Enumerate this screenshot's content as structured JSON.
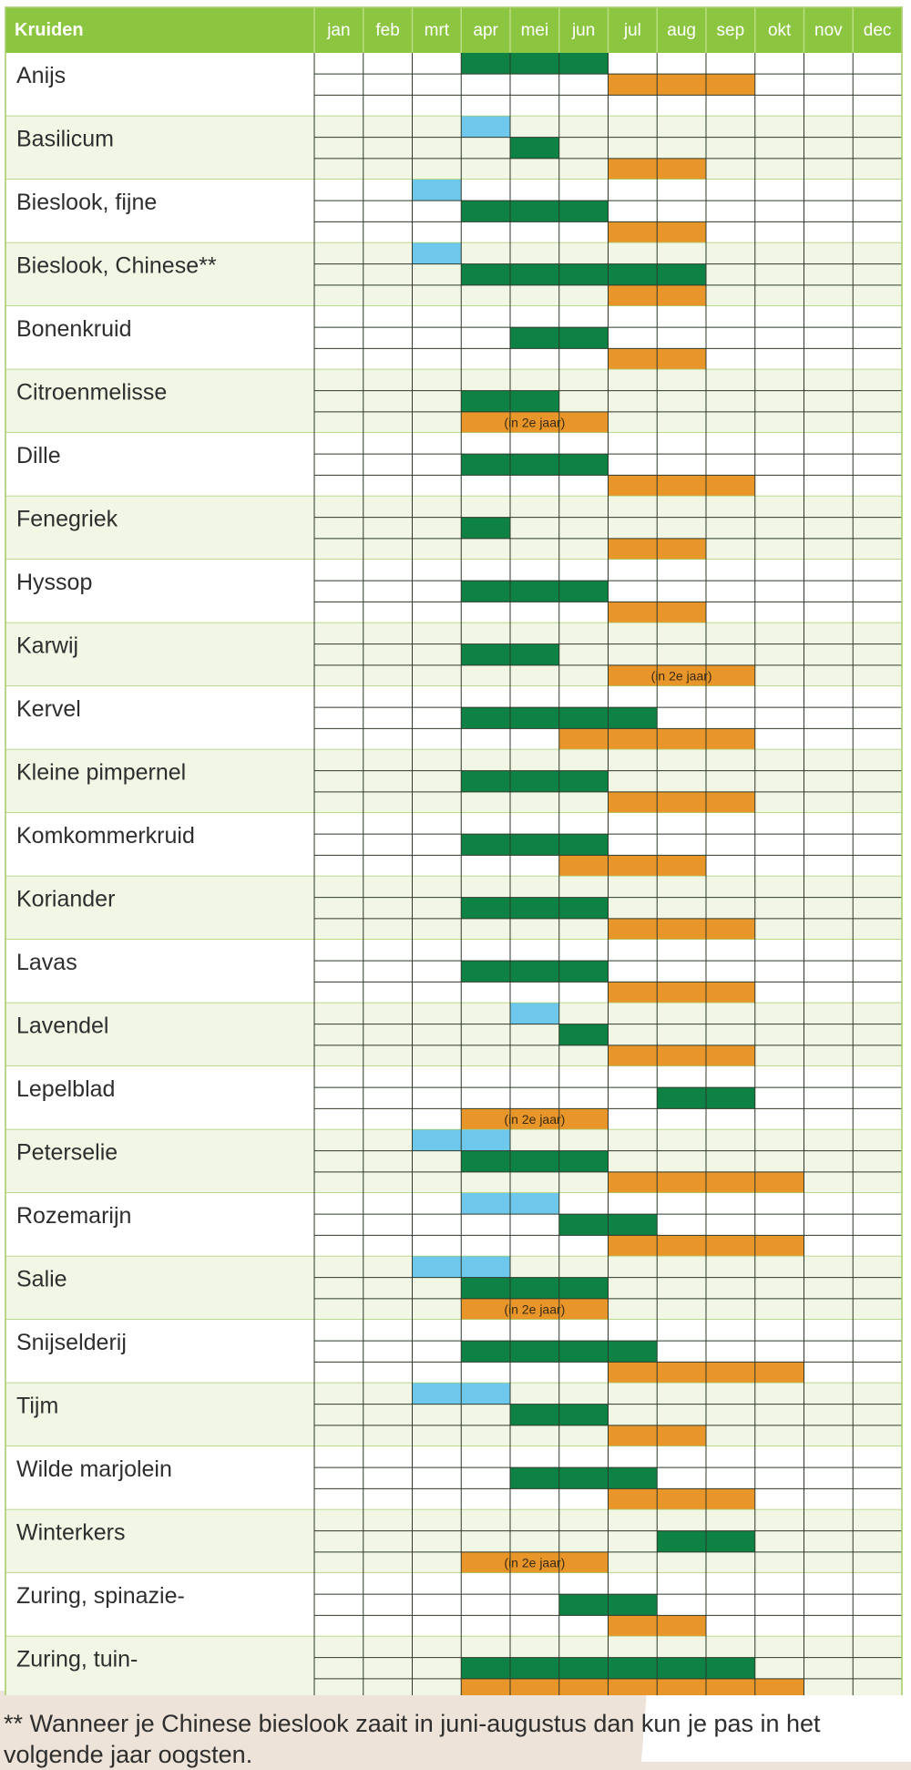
{
  "chart_data": {
    "type": "table",
    "header_label": "Kruiden",
    "months": [
      "jan",
      "feb",
      "mrt",
      "apr",
      "mei",
      "jun",
      "jul",
      "aug",
      "sep",
      "okt",
      "nov",
      "dec"
    ],
    "legend_colors": {
      "blue": "#6dc8ec",
      "green": "#0d8244",
      "orange": "#e8952a",
      "header": "#8cc540"
    },
    "rows": [
      {
        "name": "Anijs",
        "bars": [
          {
            "sub": 0,
            "color": "green",
            "start": 4,
            "end": 6
          },
          {
            "sub": 1,
            "color": "orange",
            "start": 7,
            "end": 9
          }
        ]
      },
      {
        "name": "Basilicum",
        "bars": [
          {
            "sub": 0,
            "color": "blue",
            "start": 4,
            "end": 4
          },
          {
            "sub": 1,
            "color": "green",
            "start": 5,
            "end": 5
          },
          {
            "sub": 2,
            "color": "orange",
            "start": 7,
            "end": 8
          }
        ]
      },
      {
        "name": "Bieslook, fijne",
        "bars": [
          {
            "sub": 0,
            "color": "blue",
            "start": 3,
            "end": 3
          },
          {
            "sub": 1,
            "color": "green",
            "start": 4,
            "end": 6
          },
          {
            "sub": 2,
            "color": "orange",
            "start": 7,
            "end": 8
          }
        ]
      },
      {
        "name": "Bieslook, Chinese**",
        "bars": [
          {
            "sub": 0,
            "color": "blue",
            "start": 3,
            "end": 3
          },
          {
            "sub": 1,
            "color": "green",
            "start": 4,
            "end": 8
          },
          {
            "sub": 2,
            "color": "orange",
            "start": 7,
            "end": 8
          }
        ]
      },
      {
        "name": "Bonenkruid",
        "bars": [
          {
            "sub": 1,
            "color": "green",
            "start": 5,
            "end": 6
          },
          {
            "sub": 2,
            "color": "orange",
            "start": 7,
            "end": 8
          }
        ]
      },
      {
        "name": "Citroenmelisse",
        "bars": [
          {
            "sub": 1,
            "color": "green",
            "start": 4,
            "end": 5
          },
          {
            "sub": 2,
            "color": "orange",
            "start": 4,
            "end": 6,
            "label": "(in 2e jaar)"
          }
        ]
      },
      {
        "name": "Dille",
        "bars": [
          {
            "sub": 1,
            "color": "green",
            "start": 4,
            "end": 6
          },
          {
            "sub": 2,
            "color": "orange",
            "start": 7,
            "end": 9
          }
        ]
      },
      {
        "name": "Fenegriek",
        "bars": [
          {
            "sub": 1,
            "color": "green",
            "start": 4,
            "end": 4
          },
          {
            "sub": 2,
            "color": "orange",
            "start": 7,
            "end": 8
          }
        ]
      },
      {
        "name": "Hyssop",
        "bars": [
          {
            "sub": 1,
            "color": "green",
            "start": 4,
            "end": 6
          },
          {
            "sub": 2,
            "color": "orange",
            "start": 7,
            "end": 8
          }
        ]
      },
      {
        "name": "Karwij",
        "bars": [
          {
            "sub": 1,
            "color": "green",
            "start": 4,
            "end": 5
          },
          {
            "sub": 2,
            "color": "orange",
            "start": 7,
            "end": 9,
            "label": "(in 2e jaar)"
          }
        ]
      },
      {
        "name": "Kervel",
        "bars": [
          {
            "sub": 1,
            "color": "green",
            "start": 4,
            "end": 7
          },
          {
            "sub": 2,
            "color": "orange",
            "start": 6,
            "end": 9
          }
        ]
      },
      {
        "name": "Kleine pimpernel",
        "bars": [
          {
            "sub": 1,
            "color": "green",
            "start": 4,
            "end": 6
          },
          {
            "sub": 2,
            "color": "orange",
            "start": 7,
            "end": 9
          }
        ]
      },
      {
        "name": "Komkommerkruid",
        "bars": [
          {
            "sub": 1,
            "color": "green",
            "start": 4,
            "end": 6
          },
          {
            "sub": 2,
            "color": "orange",
            "start": 6,
            "end": 8
          }
        ]
      },
      {
        "name": "Koriander",
        "bars": [
          {
            "sub": 1,
            "color": "green",
            "start": 4,
            "end": 6
          },
          {
            "sub": 2,
            "color": "orange",
            "start": 7,
            "end": 9
          }
        ]
      },
      {
        "name": "Lavas",
        "bars": [
          {
            "sub": 1,
            "color": "green",
            "start": 4,
            "end": 6
          },
          {
            "sub": 2,
            "color": "orange",
            "start": 7,
            "end": 9
          }
        ]
      },
      {
        "name": "Lavendel",
        "bars": [
          {
            "sub": 0,
            "color": "blue",
            "start": 5,
            "end": 5
          },
          {
            "sub": 1,
            "color": "green",
            "start": 6,
            "end": 6
          },
          {
            "sub": 2,
            "color": "orange",
            "start": 7,
            "end": 9
          }
        ]
      },
      {
        "name": "Lepelblad",
        "bars": [
          {
            "sub": 1,
            "color": "green",
            "start": 8,
            "end": 9
          },
          {
            "sub": 2,
            "color": "orange",
            "start": 4,
            "end": 6,
            "label": "(in 2e jaar)"
          }
        ]
      },
      {
        "name": "Peterselie",
        "bars": [
          {
            "sub": 0,
            "color": "blue",
            "start": 3,
            "end": 4
          },
          {
            "sub": 1,
            "color": "green",
            "start": 4,
            "end": 6
          },
          {
            "sub": 2,
            "color": "orange",
            "start": 7,
            "end": 10
          }
        ]
      },
      {
        "name": "Rozemarijn",
        "bars": [
          {
            "sub": 0,
            "color": "blue",
            "start": 4,
            "end": 5
          },
          {
            "sub": 1,
            "color": "green",
            "start": 6,
            "end": 7
          },
          {
            "sub": 2,
            "color": "orange",
            "start": 7,
            "end": 10
          }
        ]
      },
      {
        "name": "Salie",
        "bars": [
          {
            "sub": 0,
            "color": "blue",
            "start": 3,
            "end": 4
          },
          {
            "sub": 1,
            "color": "green",
            "start": 4,
            "end": 6
          },
          {
            "sub": 2,
            "color": "orange",
            "start": 4,
            "end": 6,
            "label": "(in 2e jaar)"
          }
        ]
      },
      {
        "name": "Snijselderij",
        "bars": [
          {
            "sub": 1,
            "color": "green",
            "start": 4,
            "end": 7
          },
          {
            "sub": 2,
            "color": "orange",
            "start": 7,
            "end": 10
          }
        ]
      },
      {
        "name": "Tijm",
        "bars": [
          {
            "sub": 0,
            "color": "blue",
            "start": 3,
            "end": 4
          },
          {
            "sub": 1,
            "color": "green",
            "start": 5,
            "end": 6
          },
          {
            "sub": 2,
            "color": "orange",
            "start": 7,
            "end": 8
          }
        ]
      },
      {
        "name": "Wilde marjolein",
        "bars": [
          {
            "sub": 1,
            "color": "green",
            "start": 5,
            "end": 7
          },
          {
            "sub": 2,
            "color": "orange",
            "start": 7,
            "end": 9
          }
        ]
      },
      {
        "name": "Winterkers",
        "bars": [
          {
            "sub": 1,
            "color": "green",
            "start": 8,
            "end": 9
          },
          {
            "sub": 2,
            "color": "orange",
            "start": 4,
            "end": 6,
            "label": "(in 2e jaar)"
          }
        ]
      },
      {
        "name": "Zuring, spinazie-",
        "bars": [
          {
            "sub": 1,
            "color": "green",
            "start": 6,
            "end": 7
          },
          {
            "sub": 2,
            "color": "orange",
            "start": 7,
            "end": 8
          }
        ]
      },
      {
        "name": "Zuring, tuin-",
        "bars": [
          {
            "sub": 1,
            "color": "green",
            "start": 4,
            "end": 9
          },
          {
            "sub": 2,
            "color": "orange",
            "start": 4,
            "end": 10
          }
        ]
      }
    ]
  },
  "footnote": "** Wanneer je Chinese bieslook zaait in juni-augustus dan kun je pas in het volgende jaar oogsten."
}
